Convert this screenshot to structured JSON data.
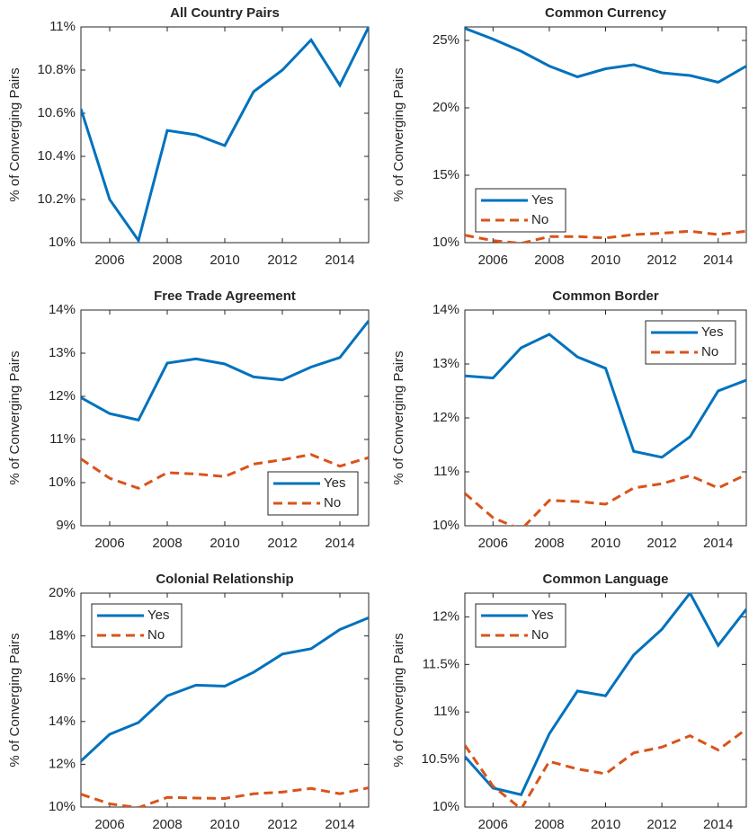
{
  "chart_data": [
    {
      "type": "line",
      "title": "All Country Pairs",
      "ylabel": "% of Converging Pairs",
      "x": [
        2005,
        2006,
        2007,
        2008,
        2009,
        2010,
        2011,
        2012,
        2013,
        2014,
        2015
      ],
      "values": [
        10.62,
        10.2,
        10.01,
        10.52,
        10.5,
        10.45,
        10.7,
        10.8,
        10.94,
        10.73,
        11.0
      ],
      "color": "#0072BD",
      "xlim": [
        2005,
        2015
      ],
      "xticks": [
        2006,
        2008,
        2010,
        2012,
        2014
      ],
      "ylim": [
        10,
        11
      ],
      "yticks": [
        {
          "value": 10,
          "label": "10%"
        },
        {
          "value": 10.2,
          "label": "10.2%"
        },
        {
          "value": 10.4,
          "label": "10.4%"
        },
        {
          "value": 10.6,
          "label": "10.6%"
        },
        {
          "value": 10.8,
          "label": "10.8%"
        },
        {
          "value": 11,
          "label": "11%"
        }
      ]
    },
    {
      "type": "line",
      "title": "Common Currency",
      "ylabel": "% of Converging Pairs",
      "x": [
        2005,
        2006,
        2007,
        2008,
        2009,
        2010,
        2011,
        2012,
        2013,
        2014,
        2015
      ],
      "series": [
        {
          "name": "Yes",
          "color": "#0072BD",
          "style": "solid",
          "values": [
            25.9,
            25.1,
            24.2,
            23.1,
            22.3,
            22.9,
            23.2,
            22.6,
            22.4,
            21.9,
            23.1
          ]
        },
        {
          "name": "No",
          "color": "#D95319",
          "style": "dashed",
          "values": [
            10.55,
            10.15,
            9.95,
            10.45,
            10.45,
            10.35,
            10.6,
            10.7,
            10.85,
            10.6,
            10.85
          ]
        }
      ],
      "legend": "lower left",
      "xlim": [
        2005,
        2015
      ],
      "xticks": [
        2006,
        2008,
        2010,
        2012,
        2014
      ],
      "ylim": [
        10,
        26
      ],
      "yticks": [
        {
          "value": 10,
          "label": "10%"
        },
        {
          "value": 15,
          "label": "15%"
        },
        {
          "value": 20,
          "label": "20%"
        },
        {
          "value": 25,
          "label": "25%"
        }
      ]
    },
    {
      "type": "line",
      "title": "Free Trade Agreement",
      "ylabel": "% of Converging Pairs",
      "x": [
        2005,
        2006,
        2007,
        2008,
        2009,
        2010,
        2011,
        2012,
        2013,
        2014,
        2015
      ],
      "series": [
        {
          "name": "Yes",
          "color": "#0072BD",
          "style": "solid",
          "values": [
            11.97,
            11.6,
            11.45,
            12.77,
            12.87,
            12.75,
            12.45,
            12.38,
            12.68,
            12.9,
            13.75
          ]
        },
        {
          "name": "No",
          "color": "#D95319",
          "style": "dashed",
          "values": [
            10.55,
            10.1,
            9.87,
            10.23,
            10.2,
            10.14,
            10.43,
            10.53,
            10.65,
            10.38,
            10.58
          ]
        }
      ],
      "legend": "lower right",
      "xlim": [
        2005,
        2015
      ],
      "xticks": [
        2006,
        2008,
        2010,
        2012,
        2014
      ],
      "ylim": [
        9,
        14
      ],
      "yticks": [
        {
          "value": 9,
          "label": "9%"
        },
        {
          "value": 10,
          "label": "10%"
        },
        {
          "value": 11,
          "label": "11%"
        },
        {
          "value": 12,
          "label": "12%"
        },
        {
          "value": 13,
          "label": "13%"
        },
        {
          "value": 14,
          "label": "14%"
        }
      ]
    },
    {
      "type": "line",
      "title": "Common Border",
      "ylabel": "% of Converging Pairs",
      "x": [
        2005,
        2006,
        2007,
        2008,
        2009,
        2010,
        2011,
        2012,
        2013,
        2014,
        2015
      ],
      "series": [
        {
          "name": "Yes",
          "color": "#0072BD",
          "style": "solid",
          "values": [
            12.78,
            12.74,
            13.3,
            13.55,
            13.13,
            12.92,
            11.38,
            11.27,
            11.65,
            12.5,
            12.7
          ]
        },
        {
          "name": "No",
          "color": "#D95319",
          "style": "dashed",
          "values": [
            10.6,
            10.15,
            9.93,
            10.47,
            10.45,
            10.4,
            10.7,
            10.78,
            10.93,
            10.7,
            10.95
          ]
        }
      ],
      "legend": "upper right",
      "xlim": [
        2005,
        2015
      ],
      "xticks": [
        2006,
        2008,
        2010,
        2012,
        2014
      ],
      "ylim": [
        10,
        14
      ],
      "yticks": [
        {
          "value": 10,
          "label": "10%"
        },
        {
          "value": 11,
          "label": "11%"
        },
        {
          "value": 12,
          "label": "12%"
        },
        {
          "value": 13,
          "label": "13%"
        },
        {
          "value": 14,
          "label": "14%"
        }
      ]
    },
    {
      "type": "line",
      "title": "Colonial Relationship",
      "ylabel": "% of Converging Pairs",
      "x": [
        2005,
        2006,
        2007,
        2008,
        2009,
        2010,
        2011,
        2012,
        2013,
        2014,
        2015
      ],
      "series": [
        {
          "name": "Yes",
          "color": "#0072BD",
          "style": "solid",
          "values": [
            12.15,
            13.4,
            13.95,
            15.2,
            15.7,
            15.65,
            16.3,
            17.15,
            17.4,
            18.3,
            18.85
          ]
        },
        {
          "name": "No",
          "color": "#D95319",
          "style": "dashed",
          "values": [
            10.6,
            10.15,
            9.97,
            10.45,
            10.42,
            10.4,
            10.62,
            10.7,
            10.87,
            10.62,
            10.9
          ]
        }
      ],
      "legend": "upper left",
      "xlim": [
        2005,
        2015
      ],
      "xticks": [
        2006,
        2008,
        2010,
        2012,
        2014
      ],
      "ylim": [
        10,
        20
      ],
      "yticks": [
        {
          "value": 10,
          "label": "10%"
        },
        {
          "value": 12,
          "label": "12%"
        },
        {
          "value": 14,
          "label": "14%"
        },
        {
          "value": 16,
          "label": "16%"
        },
        {
          "value": 18,
          "label": "18%"
        },
        {
          "value": 20,
          "label": "20%"
        }
      ]
    },
    {
      "type": "line",
      "title": "Common Language",
      "ylabel": "% of Converging Pairs",
      "x": [
        2005,
        2006,
        2007,
        2008,
        2009,
        2010,
        2011,
        2012,
        2013,
        2014,
        2015
      ],
      "series": [
        {
          "name": "Yes",
          "color": "#0072BD",
          "style": "solid",
          "values": [
            10.53,
            10.2,
            10.13,
            10.77,
            11.22,
            11.17,
            11.6,
            11.87,
            12.25,
            11.7,
            12.08
          ]
        },
        {
          "name": "No",
          "color": "#D95319",
          "style": "dashed",
          "values": [
            10.65,
            10.22,
            9.98,
            10.48,
            10.4,
            10.35,
            10.57,
            10.63,
            10.75,
            10.6,
            10.82
          ]
        }
      ],
      "legend": "upper left",
      "xlim": [
        2005,
        2015
      ],
      "xticks": [
        2006,
        2008,
        2010,
        2012,
        2014
      ],
      "ylim": [
        10,
        12.25
      ],
      "yticks": [
        {
          "value": 10,
          "label": "10%"
        },
        {
          "value": 10.5,
          "label": "10.5%"
        },
        {
          "value": 11,
          "label": "11%"
        },
        {
          "value": 11.5,
          "label": "11.5%"
        },
        {
          "value": 12,
          "label": "12%"
        }
      ]
    }
  ]
}
